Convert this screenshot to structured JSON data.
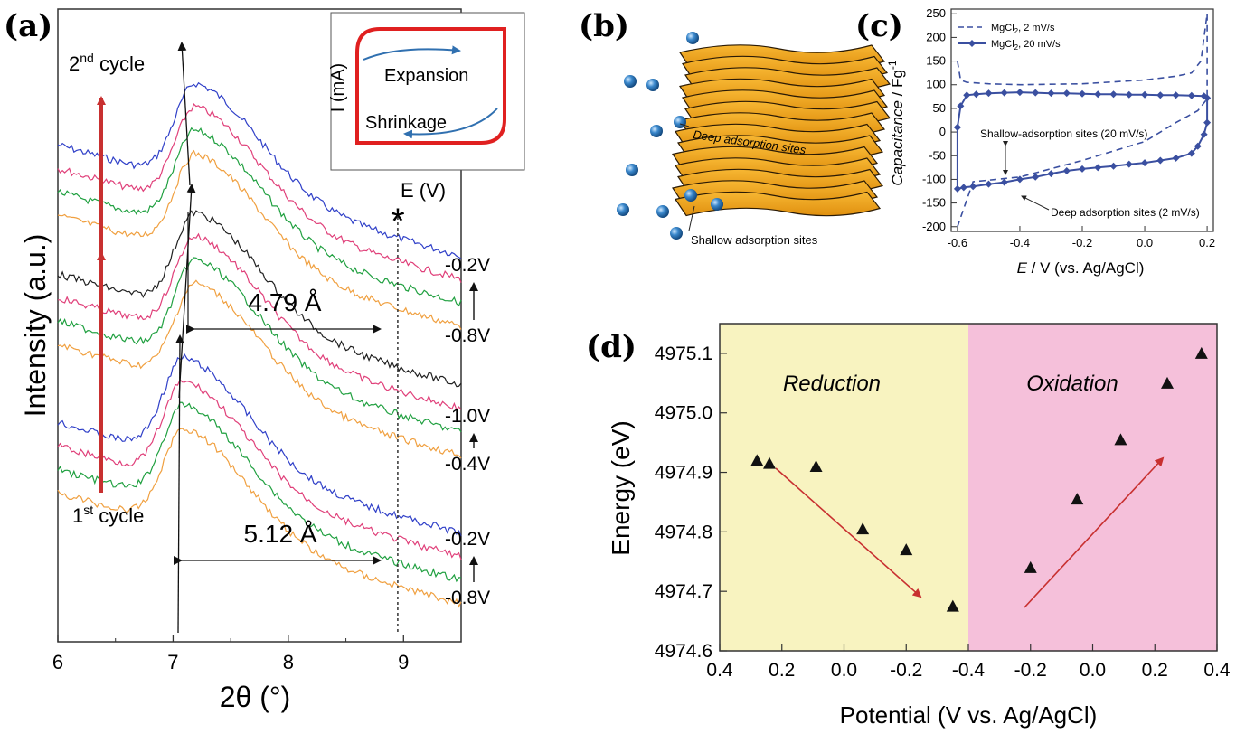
{
  "colors": {
    "reduction_bg": "#f8f3c0",
    "oxidation_bg": "#f5c0da",
    "arrow_red": "#c83030",
    "cv_blue": "#3a4fa0",
    "sheet_orange": "#f0a020",
    "ion_blue": "#3a88cc",
    "trace_colors": [
      "#3040c8",
      "#e0407a",
      "#20a040",
      "#f0a040",
      "#202020"
    ]
  },
  "icons": {
    "ion": "blue-sphere-icon",
    "sheet": "layered-sheet-icon"
  },
  "chart_data": [
    {
      "id": "a",
      "type": "line",
      "panel_label": "(a)",
      "xlabel": "2θ (°)",
      "ylabel": "Intensity (a.u.)",
      "xlim": [
        6,
        9.5
      ],
      "xticks": [
        6,
        7,
        8,
        9
      ],
      "annotations": {
        "cycle2_text": "2",
        "cycle2_sup": "nd",
        "cycle2_suffix": " cycle",
        "cycle1_text": "1",
        "cycle1_sup": "st",
        "cycle1_suffix": " cycle",
        "d1": "4.79 Å",
        "d2": "5.12 Å",
        "star": "*",
        "star_x": 8.95
      },
      "groups": [
        {
          "name": "group-top",
          "labels": [
            "-0.2V",
            "-0.8V"
          ],
          "peak": 7.2,
          "colors": [
            "#3040c8",
            "#e0407a",
            "#20a040",
            "#f0a040"
          ]
        },
        {
          "name": "group-mid",
          "labels": [
            "-1.0V",
            "-0.4V"
          ],
          "peak": 7.2,
          "colors": [
            "#202020",
            "#e0407a",
            "#20a040",
            "#f0a040"
          ]
        },
        {
          "name": "group-bottom",
          "labels": [
            "-0.2V",
            "-0.8V"
          ],
          "peak": 7.1,
          "colors": [
            "#3040c8",
            "#e0407a",
            "#20a040",
            "#f0a040"
          ]
        }
      ],
      "inset": {
        "xlabel": "E (V)",
        "ylabel": "I (mA)",
        "top_label": "Expansion",
        "bottom_label": "Shrinkage"
      }
    },
    {
      "id": "b",
      "type": "diagram",
      "panel_label": "(b)",
      "labels": {
        "deep": "Deep adsorption sites",
        "shallow": "Shallow adsorption sites"
      }
    },
    {
      "id": "c",
      "type": "line",
      "panel_label": "(c)",
      "xlabel_italic": "E",
      "xlabel_rest": " / V (vs. Ag/AgCl)",
      "ylabel_italic": "Capacitance",
      "ylabel_rest": " / Fg",
      "ylabel_sup": "-1",
      "xlim": [
        -0.62,
        0.22
      ],
      "ylim": [
        -210,
        260
      ],
      "xticks": [
        -0.6,
        -0.4,
        -0.2,
        0.0,
        0.2
      ],
      "xticklabels": [
        "-0.6",
        "-0.4",
        "-0.2",
        "0.0",
        "0.2"
      ],
      "yticks": [
        -200,
        -150,
        -100,
        -50,
        0,
        50,
        100,
        150,
        200,
        250
      ],
      "legend_position": "top-left",
      "series": [
        {
          "name": "MgCl",
          "name_sub": "2",
          "name_rest": ", 2 mV/s",
          "style": "dashed",
          "upper": [
            [
              -0.6,
              150
            ],
            [
              -0.59,
              110
            ],
            [
              -0.57,
              105
            ],
            [
              -0.5,
              102
            ],
            [
              -0.4,
              100
            ],
            [
              -0.2,
              102
            ],
            [
              0.0,
              110
            ],
            [
              0.1,
              118
            ],
            [
              0.15,
              125
            ],
            [
              0.18,
              150
            ],
            [
              0.2,
              250
            ]
          ],
          "lower": [
            [
              0.2,
              250
            ],
            [
              0.2,
              70
            ],
            [
              0.17,
              45
            ],
            [
              0.1,
              20
            ],
            [
              0.0,
              -20
            ],
            [
              -0.2,
              -60
            ],
            [
              -0.4,
              -95
            ],
            [
              -0.55,
              -105
            ],
            [
              -0.6,
              -200
            ]
          ]
        },
        {
          "name": "MgCl",
          "name_sub": "2",
          "name_rest": ", 20 mV/s",
          "style": "solid-diamond",
          "upper": [
            [
              -0.6,
              10
            ],
            [
              -0.59,
              55
            ],
            [
              -0.57,
              78
            ],
            [
              -0.54,
              80
            ],
            [
              -0.5,
              82
            ],
            [
              -0.45,
              83
            ],
            [
              -0.4,
              84
            ],
            [
              -0.35,
              83
            ],
            [
              -0.3,
              82
            ],
            [
              -0.25,
              82
            ],
            [
              -0.2,
              81
            ],
            [
              -0.15,
              80
            ],
            [
              -0.1,
              80
            ],
            [
              -0.05,
              79
            ],
            [
              0.0,
              79
            ],
            [
              0.05,
              78
            ],
            [
              0.1,
              78
            ],
            [
              0.15,
              77
            ],
            [
              0.19,
              76
            ],
            [
              0.2,
              72
            ]
          ],
          "lower": [
            [
              0.2,
              72
            ],
            [
              0.2,
              20
            ],
            [
              0.19,
              -5
            ],
            [
              0.17,
              -30
            ],
            [
              0.15,
              -45
            ],
            [
              0.1,
              -55
            ],
            [
              0.05,
              -60
            ],
            [
              0.0,
              -65
            ],
            [
              -0.05,
              -68
            ],
            [
              -0.1,
              -72
            ],
            [
              -0.15,
              -75
            ],
            [
              -0.2,
              -78
            ],
            [
              -0.25,
              -82
            ],
            [
              -0.3,
              -88
            ],
            [
              -0.35,
              -95
            ],
            [
              -0.4,
              -100
            ],
            [
              -0.45,
              -106
            ],
            [
              -0.5,
              -110
            ],
            [
              -0.55,
              -115
            ],
            [
              -0.58,
              -117
            ],
            [
              -0.6,
              -120
            ],
            [
              -0.6,
              10
            ]
          ]
        }
      ],
      "annotations": {
        "shallow": "Shallow-adsorption sites (20 mV/s)",
        "deep": "Deep adsorption sites (2 mV/s)"
      }
    },
    {
      "id": "d",
      "type": "scatter",
      "panel_label": "(d)",
      "xlabel": "Potential (V vs. Ag/AgCl)",
      "ylabel": "Energy (eV)",
      "ylim": [
        4974.6,
        4975.15
      ],
      "yticks": [
        4974.6,
        4974.7,
        4974.8,
        4974.9,
        4975.0,
        4975.1
      ],
      "yticklabels": [
        "4974.6",
        "4974.7",
        "4974.8",
        "4974.9",
        "4975.0",
        "4975.1"
      ],
      "xticklabels": [
        "0.4",
        "0.2",
        "0.0",
        "-0.2",
        "-0.4",
        "-0.2",
        "0.0",
        "0.2",
        "0.4"
      ],
      "regions": [
        {
          "name": "Reduction",
          "x_range": [
            0.4,
            -0.4
          ]
        },
        {
          "name": "Oxidation",
          "x_range": [
            -0.4,
            0.4
          ]
        }
      ],
      "reduction_points": [
        [
          0.28,
          4974.92
        ],
        [
          0.24,
          4974.915
        ],
        [
          0.09,
          4974.91
        ],
        [
          -0.06,
          4974.805
        ],
        [
          -0.2,
          4974.77
        ],
        [
          -0.35,
          4974.675
        ]
      ],
      "oxidation_points": [
        [
          -0.2,
          4974.74
        ],
        [
          -0.05,
          4974.855
        ],
        [
          0.09,
          4974.955
        ],
        [
          0.24,
          4975.05
        ],
        [
          0.35,
          4975.1
        ]
      ]
    }
  ]
}
